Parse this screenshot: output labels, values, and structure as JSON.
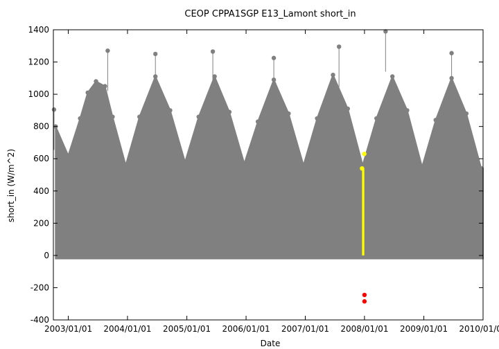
{
  "chart_data": {
    "type": "scatter",
    "title": "CEOP  CPPA1SGP E13_Lamont  short_in",
    "xlabel": "Date",
    "ylabel": "short_in (W/m^2)",
    "ylim": [
      -400,
      1400
    ],
    "yticks": [
      -400,
      -200,
      0,
      200,
      400,
      600,
      800,
      1000,
      1200,
      1400
    ],
    "xlim": [
      "2002-10-01",
      "2010-01-01"
    ],
    "xticks": [
      "2003/01/01",
      "2004/01/01",
      "2005/01/01",
      "2006/01/01",
      "2007/01/01",
      "2008/01/01",
      "2009/01/01",
      "2010/01/01"
    ],
    "grid": false,
    "legend": "none",
    "colors": {
      "main": "#808080",
      "flagged": "#ffff00",
      "bad": "#ff0000",
      "axis": "#000000"
    },
    "series": [
      {
        "role": "main",
        "x": [
          "2002-10-15",
          "2003-01-01",
          "2003-03-15",
          "2003-05-01",
          "2003-06-21",
          "2003-08-15",
          "2003-10-01",
          "2003-12-21",
          "2004-03-15",
          "2004-06-21",
          "2004-09-20",
          "2004-12-21",
          "2005-03-15",
          "2005-06-21",
          "2005-09-20",
          "2005-12-21",
          "2006-03-15",
          "2006-06-21",
          "2006-09-20",
          "2006-12-21",
          "2007-03-15",
          "2007-06-21",
          "2007-09-20",
          "2007-12-21",
          "2008-03-15",
          "2008-06-21",
          "2008-09-20",
          "2008-12-21",
          "2009-03-15",
          "2009-06-21",
          "2009-09-20",
          "2009-12-21"
        ],
        "y_max": [
          800,
          620,
          850,
          1010,
          1080,
          1050,
          860,
          560,
          860,
          1110,
          900,
          580,
          860,
          1110,
          890,
          570,
          830,
          1090,
          880,
          560,
          850,
          1120,
          910,
          560,
          850,
          1110,
          900,
          550,
          840,
          1100,
          880,
          540
        ],
        "y_min": -20
      },
      {
        "role": "flagged",
        "x": [
          "2007-12-17",
          "2007-12-31"
        ],
        "y_max": [
          540,
          630
        ],
        "y_min": 0
      },
      {
        "role": "bad",
        "x": [
          "2008-01-01",
          "2008-01-01"
        ],
        "y": [
          -245,
          -285
        ]
      }
    ],
    "extremes": [
      {
        "x": "2003-09-01",
        "y": 1270
      },
      {
        "x": "2004-06-21",
        "y": 1250
      },
      {
        "x": "2005-06-10",
        "y": 1265
      },
      {
        "x": "2006-06-21",
        "y": 1225
      },
      {
        "x": "2007-07-28",
        "y": 1295
      },
      {
        "x": "2008-05-10",
        "y": 1390
      },
      {
        "x": "2009-06-21",
        "y": 1255
      },
      {
        "x": "2002-10-05",
        "y": 905
      }
    ]
  }
}
